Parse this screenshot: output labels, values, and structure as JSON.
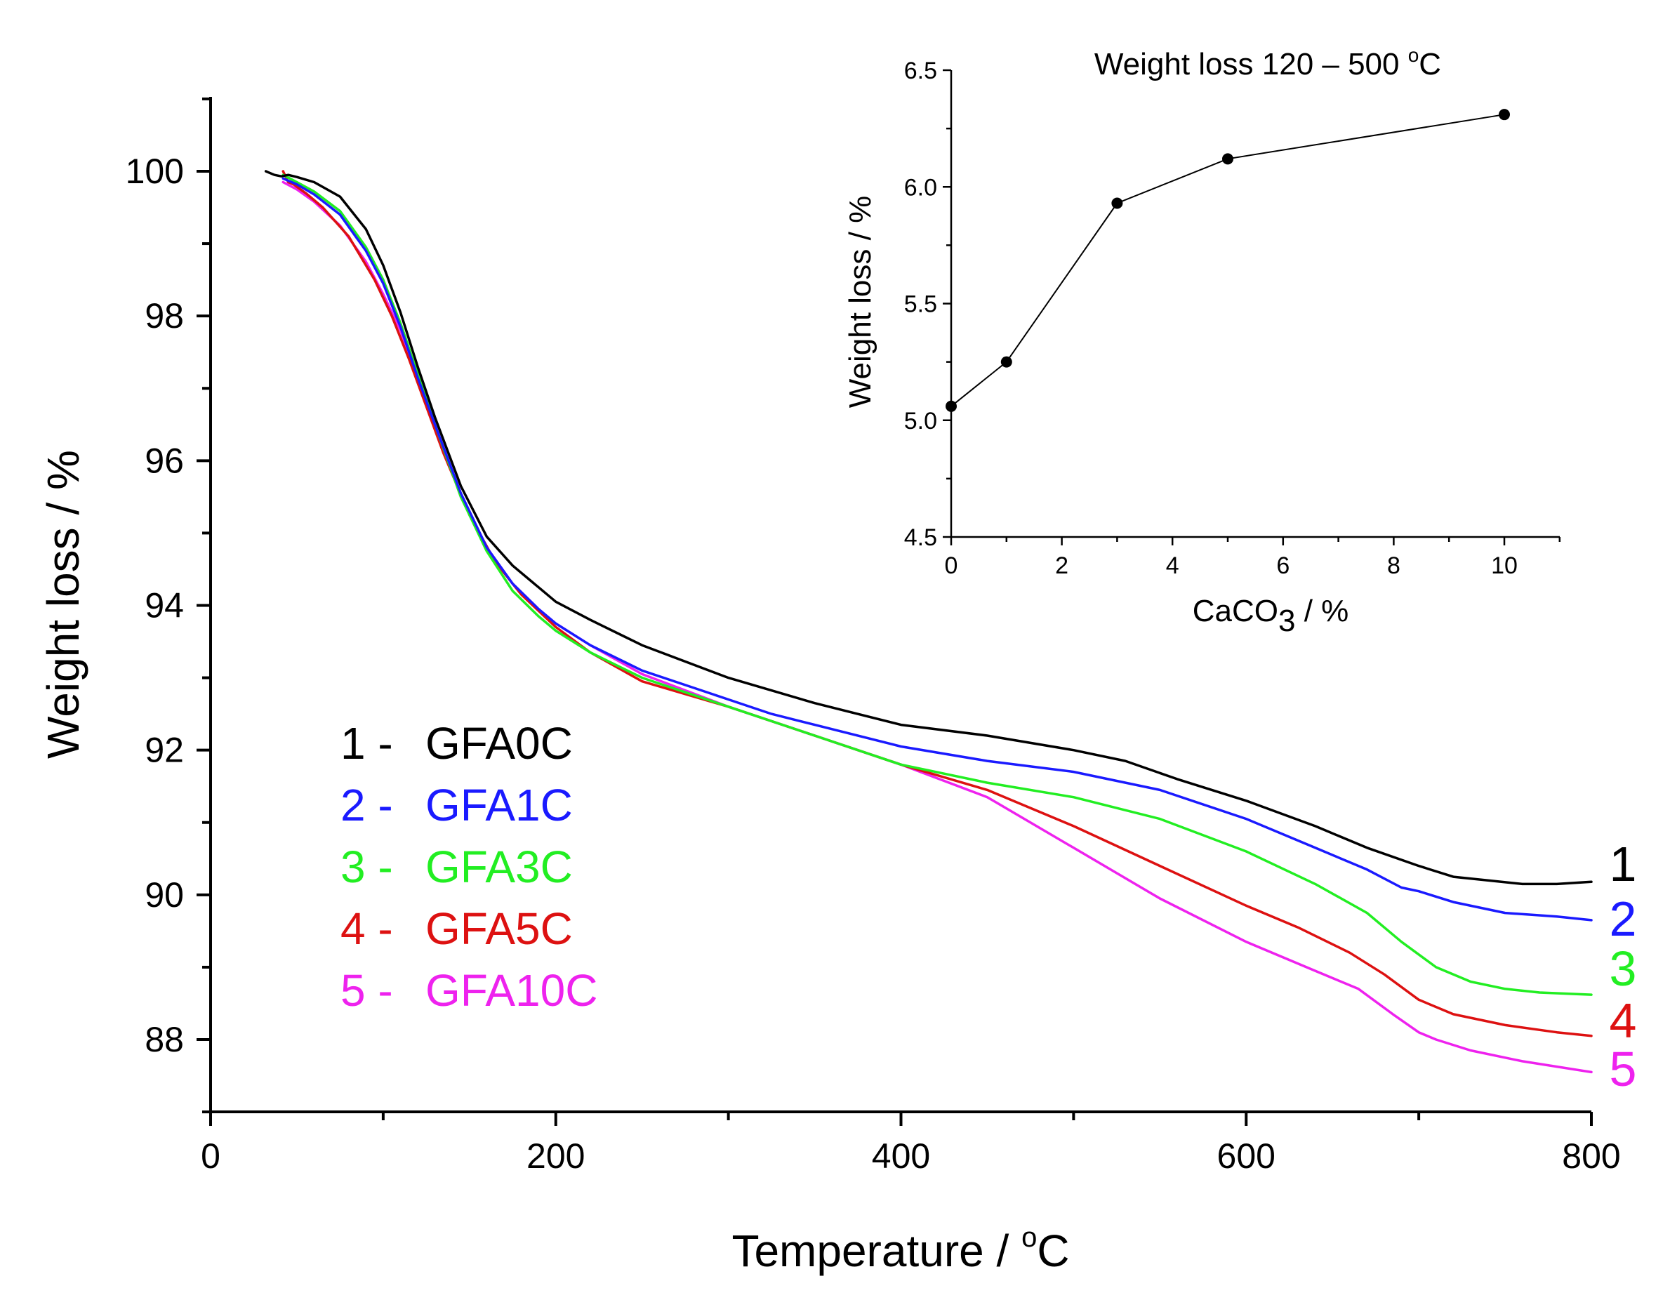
{
  "chart_data": [
    {
      "type": "line",
      "xlabel": "Temperature / °C",
      "ylabel": "Weight loss / %",
      "xlim": [
        0,
        800
      ],
      "ylim": [
        87,
        101
      ],
      "x_ticks": [
        0,
        200,
        400,
        600,
        800
      ],
      "y_ticks": [
        88,
        90,
        92,
        94,
        96,
        98,
        100
      ],
      "x_ticklabels": [
        "0",
        "200",
        "400",
        "600",
        "800"
      ],
      "y_ticklabels": [
        "88",
        "90",
        "92",
        "94",
        "96",
        "98",
        "100"
      ],
      "legend_position": "bottom-left",
      "series": [
        {
          "id": "1",
          "name": "GFA0C",
          "legend_prefix": "1 -",
          "end_label": "1",
          "color": "#000000",
          "x": [
            32,
            37,
            41,
            45,
            50,
            60,
            75,
            90,
            100,
            110,
            120,
            130,
            145,
            160,
            175,
            190,
            200,
            220,
            250,
            300,
            350,
            400,
            450,
            500,
            530,
            560,
            600,
            640,
            670,
            700,
            720,
            740,
            760,
            780,
            800
          ],
          "y": [
            100.0,
            99.95,
            99.93,
            99.95,
            99.92,
            99.85,
            99.65,
            99.2,
            98.7,
            98.05,
            97.3,
            96.6,
            95.65,
            94.95,
            94.55,
            94.25,
            94.05,
            93.8,
            93.45,
            93.0,
            92.65,
            92.35,
            92.2,
            92.0,
            91.85,
            91.6,
            91.3,
            90.95,
            90.65,
            90.4,
            90.25,
            90.2,
            90.15,
            90.15,
            90.18
          ]
        },
        {
          "id": "2",
          "name": "GFA1C",
          "legend_prefix": "2 -",
          "end_label": "2",
          "color": "#1a1aff",
          "x": [
            42,
            50,
            60,
            75,
            90,
            100,
            110,
            120,
            130,
            145,
            160,
            175,
            190,
            200,
            220,
            250,
            275,
            300,
            325,
            350,
            400,
            450,
            500,
            550,
            600,
            640,
            670,
            690,
            700,
            720,
            750,
            780,
            800
          ],
          "y": [
            99.9,
            99.82,
            99.68,
            99.4,
            98.9,
            98.45,
            97.85,
            97.15,
            96.5,
            95.55,
            94.8,
            94.3,
            93.95,
            93.75,
            93.45,
            93.1,
            92.9,
            92.7,
            92.5,
            92.35,
            92.05,
            91.85,
            91.7,
            91.45,
            91.05,
            90.65,
            90.35,
            90.1,
            90.05,
            89.9,
            89.75,
            89.7,
            89.65
          ]
        },
        {
          "id": "3",
          "name": "GFA3C",
          "legend_prefix": "3 -",
          "end_label": "3",
          "color": "#22ee22",
          "x": [
            42,
            50,
            60,
            75,
            90,
            100,
            110,
            120,
            130,
            145,
            160,
            175,
            190,
            200,
            220,
            250,
            300,
            350,
            400,
            450,
            500,
            550,
            600,
            640,
            670,
            690,
            710,
            730,
            750,
            770,
            800
          ],
          "y": [
            99.95,
            99.85,
            99.72,
            99.45,
            98.95,
            98.5,
            97.9,
            97.2,
            96.5,
            95.5,
            94.75,
            94.2,
            93.85,
            93.65,
            93.35,
            93.0,
            92.6,
            92.2,
            91.8,
            91.55,
            91.35,
            91.05,
            90.6,
            90.15,
            89.75,
            89.35,
            89.0,
            88.8,
            88.7,
            88.65,
            88.62
          ]
        },
        {
          "id": "4",
          "name": "GFA5C",
          "legend_prefix": "4 -",
          "end_label": "4",
          "color": "#dd1111",
          "x": [
            42,
            45,
            48,
            55,
            65,
            80,
            95,
            105,
            115,
            125,
            135,
            150,
            165,
            180,
            200,
            220,
            250,
            300,
            350,
            400,
            450,
            500,
            550,
            600,
            630,
            660,
            680,
            700,
            720,
            750,
            780,
            800
          ],
          "y": [
            100.0,
            99.85,
            99.82,
            99.7,
            99.5,
            99.1,
            98.5,
            98.0,
            97.4,
            96.75,
            96.1,
            95.25,
            94.6,
            94.15,
            93.7,
            93.35,
            92.95,
            92.6,
            92.2,
            91.8,
            91.45,
            90.95,
            90.4,
            89.85,
            89.55,
            89.2,
            88.9,
            88.55,
            88.35,
            88.2,
            88.1,
            88.05
          ]
        },
        {
          "id": "5",
          "name": "GFA10C",
          "legend_prefix": "5 -",
          "end_label": "5",
          "color": "#ee22ee",
          "x": [
            42,
            50,
            60,
            75,
            90,
            100,
            110,
            120,
            130,
            145,
            160,
            175,
            190,
            200,
            220,
            250,
            300,
            350,
            400,
            450,
            500,
            550,
            600,
            640,
            665,
            685,
            700,
            710,
            730,
            760,
            800
          ],
          "y": [
            99.85,
            99.75,
            99.58,
            99.25,
            98.75,
            98.3,
            97.8,
            97.15,
            96.5,
            95.5,
            94.8,
            94.3,
            93.95,
            93.75,
            93.45,
            93.05,
            92.6,
            92.2,
            91.8,
            91.35,
            90.65,
            89.95,
            89.35,
            88.95,
            88.7,
            88.35,
            88.1,
            88.0,
            87.85,
            87.7,
            87.55
          ]
        }
      ]
    },
    {
      "type": "line",
      "title": "Weight loss 120 – 500 °C",
      "xlabel": "CaCO3 / %",
      "ylabel": "Weight loss / %",
      "xlim": [
        0,
        11
      ],
      "ylim": [
        4.5,
        6.5
      ],
      "x_ticks": [
        0,
        2,
        4,
        6,
        8,
        10
      ],
      "y_ticks": [
        4.5,
        5.0,
        5.5,
        6.0,
        6.5
      ],
      "x_ticklabels": [
        "0",
        "2",
        "4",
        "6",
        "8",
        "10"
      ],
      "y_ticklabels": [
        "4.5",
        "5.0",
        "5.5",
        "6.0",
        "6.5"
      ],
      "markers": true,
      "series": [
        {
          "name": "Weight loss 120–500 °C",
          "x": [
            0,
            1,
            3,
            5,
            10
          ],
          "y": [
            5.06,
            5.25,
            5.93,
            6.12,
            6.31
          ]
        }
      ]
    }
  ],
  "text": {
    "main_xlabel_main": "Temperature / ",
    "main_xlabel_deg": "o",
    "main_xlabel_unit": "C",
    "main_ylabel": "Weight loss / %",
    "inset_title_main": "Weight loss 120 – 500 ",
    "inset_title_deg": "o",
    "inset_title_unit": "C",
    "inset_xlabel_main": "CaCO",
    "inset_xlabel_sub": "3",
    "inset_xlabel_tail": " / %",
    "inset_ylabel": "Weight loss / %"
  }
}
